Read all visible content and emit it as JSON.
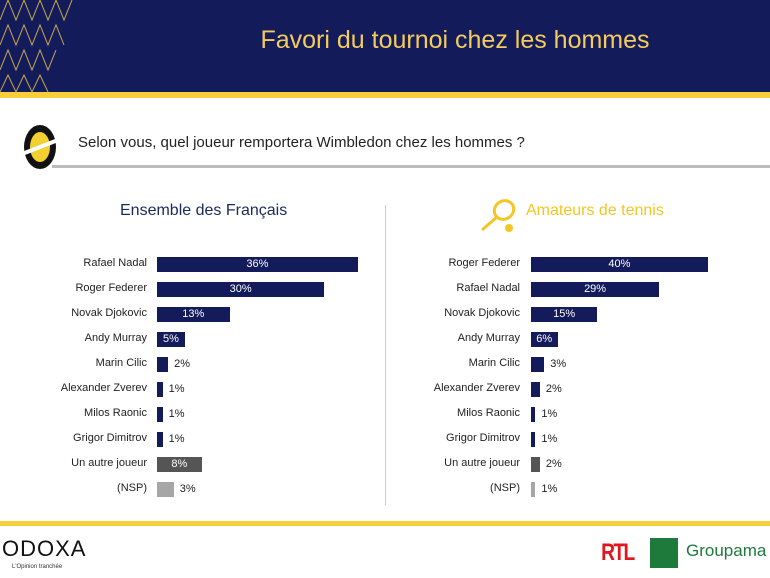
{
  "header": {
    "title": "Favori du tournoi chez les hommes"
  },
  "question": "Selon vous, quel joueur remportera Wimbledon chez les hommes ?",
  "footer": {
    "brand": "ODOXA",
    "tagline": "L'Opinion tranchée",
    "partner1": "RTL",
    "partner2": "Groupama"
  },
  "colors": {
    "main": "#141b5a",
    "other": "#555555",
    "nsp": "#a6a6a6",
    "accent": "#f3c623"
  },
  "chart_data": [
    {
      "type": "bar",
      "title": "Ensemble des Français",
      "categories": [
        "Rafael Nadal",
        "Roger Federer",
        "Novak Djokovic",
        "Andy Murray",
        "Marin Cilic",
        "Alexander Zverev",
        "Milos Raonic",
        "Grigor Dimitrov",
        "Un autre joueur",
        "(NSP)"
      ],
      "values": [
        36,
        30,
        13,
        5,
        2,
        1,
        1,
        1,
        8,
        3
      ],
      "labels": [
        "36%",
        "30%",
        "13%",
        "5%",
        "2%",
        "1%",
        "1%",
        "1%",
        "8%",
        "3%"
      ],
      "unit": "%"
    },
    {
      "type": "bar",
      "title": "Amateurs de tennis",
      "categories": [
        "Roger Federer",
        "Rafael Nadal",
        "Novak Djokovic",
        "Andy Murray",
        "Marin Cilic",
        "Alexander Zverev",
        "Milos Raonic",
        "Grigor Dimitrov",
        "Un autre joueur",
        "(NSP)"
      ],
      "values": [
        40,
        29,
        15,
        6,
        3,
        2,
        1,
        1,
        2,
        1
      ],
      "labels": [
        "40%",
        "29%",
        "15%",
        "6%",
        "3%",
        "2%",
        "1%",
        "1%",
        "2%",
        "1%"
      ],
      "unit": "%"
    }
  ]
}
